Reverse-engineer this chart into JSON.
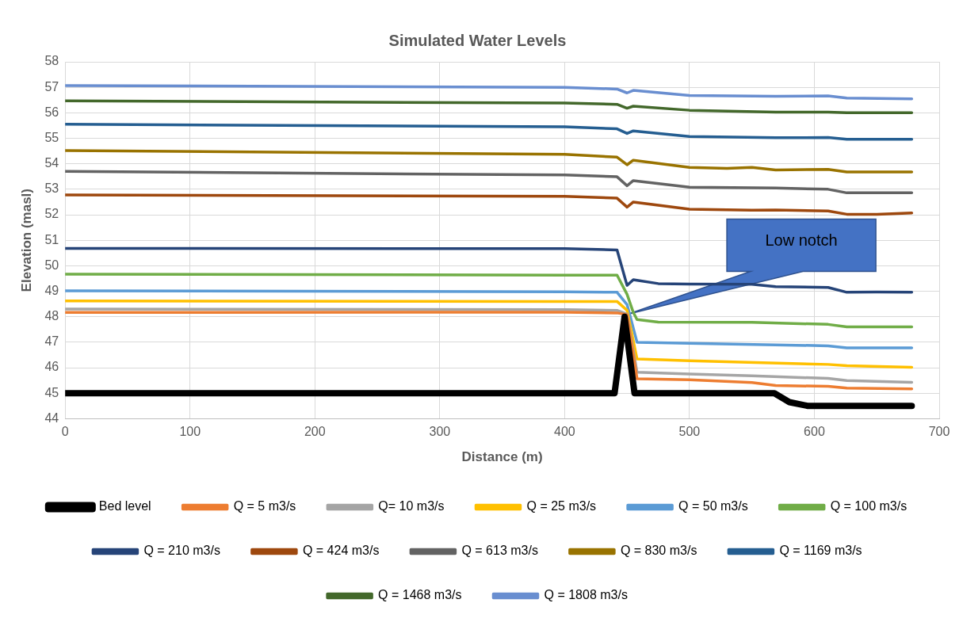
{
  "chart_data": {
    "type": "line",
    "title": "Simulated Water Levels",
    "xlabel": "Distance (m)",
    "ylabel": "Elevation (masl)",
    "xlim": [
      0,
      700
    ],
    "xticks": [
      0,
      100,
      200,
      300,
      400,
      500,
      600,
      700
    ],
    "ylim": [
      44,
      58
    ],
    "yticks": [
      44,
      45,
      46,
      47,
      48,
      49,
      50,
      51,
      52,
      53,
      54,
      55,
      56,
      57,
      58
    ],
    "grid": true,
    "legend": "bottom",
    "marker": "none",
    "line_style": "solid",
    "annotations": [
      "Low notch"
    ],
    "series": [
      {
        "name": "Bed level",
        "color": "#000000",
        "x": [
          0,
          440,
          448,
          456,
          568,
          580,
          595,
          678
        ],
        "values": [
          45,
          45,
          48,
          45,
          45,
          44.65,
          44.5,
          44.5
        ]
      },
      {
        "name": "Q = 5 m3/s",
        "color": "#ed7d31",
        "x": [
          0,
          400,
          442,
          450,
          458,
          500,
          550,
          569,
          611,
          626,
          678
        ],
        "values": [
          48.17,
          48.18,
          48.15,
          48.08,
          45.57,
          45.53,
          45.42,
          45.3,
          45.27,
          45.2,
          45.17
        ]
      },
      {
        "name": "Q= 10 m3/s",
        "color": "#a5a5a5",
        "x": [
          0,
          400,
          442,
          450,
          458,
          500,
          550,
          611,
          626,
          678
        ],
        "values": [
          48.3,
          48.28,
          48.25,
          48.1,
          45.82,
          45.75,
          45.68,
          45.58,
          45.5,
          45.43
        ]
      },
      {
        "name": "Q = 25 m3/s",
        "color": "#ffc000",
        "x": [
          0,
          400,
          442,
          450,
          458,
          500,
          611,
          626,
          678
        ],
        "values": [
          48.62,
          48.6,
          48.6,
          48.25,
          46.34,
          46.27,
          46.13,
          46.08,
          46.02
        ]
      },
      {
        "name": "Q = 50 m3/s",
        "color": "#5b9bd5",
        "x": [
          0,
          400,
          442,
          450,
          458,
          500,
          611,
          626,
          678
        ],
        "values": [
          49.02,
          48.98,
          48.96,
          48.48,
          47.0,
          46.96,
          46.86,
          46.78,
          46.78
        ]
      },
      {
        "name": "Q = 100 m3/s",
        "color": "#70ad47",
        "x": [
          0,
          400,
          442,
          450,
          455,
          458,
          475,
          550,
          611,
          626,
          678
        ],
        "values": [
          49.67,
          49.63,
          49.63,
          48.88,
          48.17,
          47.89,
          47.79,
          47.78,
          47.7,
          47.6,
          47.6
        ]
      },
      {
        "name": "Q = 210 m3/s",
        "color": "#264478",
        "x": [
          0,
          400,
          442,
          450,
          455,
          475,
          500,
          550,
          569,
          611,
          626,
          650,
          678
        ],
        "values": [
          50.68,
          50.67,
          50.62,
          49.23,
          49.45,
          49.3,
          49.28,
          49.27,
          49.18,
          49.15,
          48.96,
          48.97,
          48.96
        ]
      },
      {
        "name": "Q = 424 m3/s",
        "color": "#9e480e",
        "x": [
          0,
          400,
          442,
          450,
          455,
          500,
          550,
          569,
          611,
          626,
          650,
          678
        ],
        "values": [
          52.78,
          52.72,
          52.65,
          52.3,
          52.5,
          52.22,
          52.18,
          52.19,
          52.15,
          52.02,
          52.02,
          52.07
        ]
      },
      {
        "name": "Q = 613 m3/s",
        "color": "#636363",
        "x": [
          0,
          400,
          442,
          450,
          455,
          500,
          569,
          611,
          626,
          678
        ],
        "values": [
          53.7,
          53.56,
          53.49,
          53.14,
          53.34,
          53.08,
          53.05,
          53.0,
          52.86,
          52.86
        ]
      },
      {
        "name": "Q = 830 m3/s",
        "color": "#997300",
        "x": [
          0,
          400,
          442,
          450,
          455,
          500,
          530,
          550,
          569,
          611,
          626,
          678
        ],
        "values": [
          54.52,
          54.37,
          54.26,
          53.96,
          54.14,
          53.86,
          53.82,
          53.86,
          53.76,
          53.78,
          53.68,
          53.68
        ]
      },
      {
        "name": "Q = 1169 m3/s",
        "color": "#255e91",
        "x": [
          0,
          400,
          442,
          450,
          455,
          500,
          569,
          611,
          626,
          678
        ],
        "values": [
          55.55,
          55.45,
          55.37,
          55.19,
          55.29,
          55.07,
          55.02,
          55.03,
          54.96,
          54.96
        ]
      },
      {
        "name": "Q = 1468 m3/s",
        "color": "#43682b",
        "x": [
          0,
          400,
          442,
          450,
          455,
          500,
          569,
          611,
          626,
          678
        ],
        "values": [
          56.47,
          56.38,
          56.33,
          56.18,
          56.26,
          56.1,
          56.03,
          56.03,
          56.0,
          56.0
        ]
      },
      {
        "name": "Q = 1808 m3/s",
        "color": "#698ed0",
        "x": [
          0,
          400,
          442,
          450,
          455,
          500,
          569,
          611,
          626,
          678
        ],
        "values": [
          57.07,
          57.0,
          56.93,
          56.78,
          56.88,
          56.68,
          56.65,
          56.66,
          56.58,
          56.55
        ]
      }
    ]
  }
}
